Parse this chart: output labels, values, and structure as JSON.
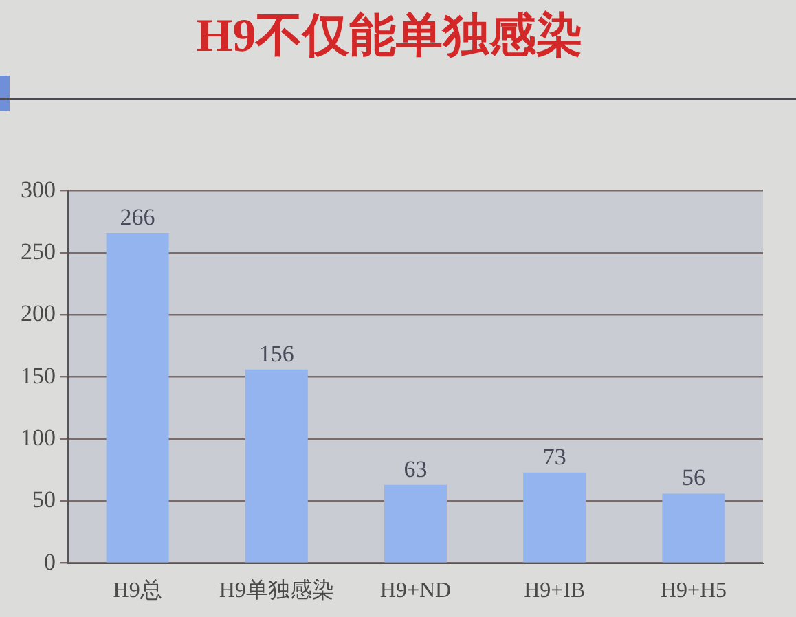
{
  "chart_data": {
    "type": "bar",
    "title": "H9不仅能单独感染",
    "categories": [
      "H9总",
      "H9单独感染",
      "H9+ND",
      "H9+IB",
      "H9+H5"
    ],
    "values": [
      266,
      156,
      63,
      73,
      56
    ],
    "color": "#93b4ee",
    "ylim": [
      0,
      300
    ],
    "yticks": [
      0,
      50,
      100,
      150,
      200,
      250,
      300
    ],
    "grid": "y",
    "data_labels": true,
    "legend": false
  }
}
